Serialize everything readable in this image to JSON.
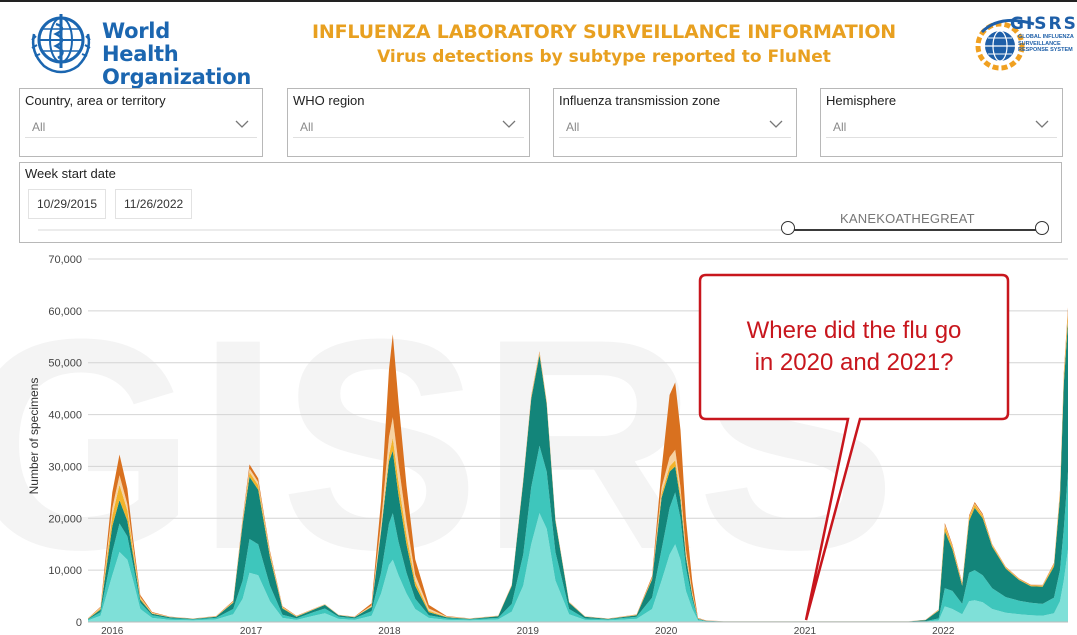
{
  "header": {
    "org_name_line1": "World Health",
    "org_name_line2": "Organization",
    "title": "INFLUENZA LABORATORY SURVEILLANCE INFORMATION",
    "subtitle": "Virus detections by subtype reported to FluNet",
    "partner_logo_text": "GISRS",
    "partner_logo_sub1": "GLOBAL INFLUENZA",
    "partner_logo_sub2": "SURVEILLANCE",
    "partner_logo_sub3": "RESPONSE SYSTEM"
  },
  "filters": [
    {
      "label": "Country, area or territory",
      "value": "All"
    },
    {
      "label": "WHO region",
      "value": "All"
    },
    {
      "label": "Influenza transmission zone",
      "value": "All"
    },
    {
      "label": "Hemisphere",
      "value": "All"
    }
  ],
  "date_filter": {
    "label": "Week start date",
    "start": "10/29/2015",
    "end": "11/26/2022",
    "overlay_text": "KANEKOATHEGREAT"
  },
  "annotation": {
    "line1": "Where did the flu go",
    "line2": "in 2020 and 2021?"
  },
  "colors": {
    "title_orange": "#e8a020",
    "who_blue": "#1b66b0",
    "series_light_cyan": "#7fe0d8",
    "series_turquoise": "#3ec6bc",
    "series_dark_teal": "#13857a",
    "series_yellow": "#f2b32a",
    "series_peach": "#f6d2a2",
    "series_orange": "#d9711f",
    "callout_red": "#c8161d"
  },
  "chart_data": {
    "type": "area",
    "stacked": true,
    "ylabel": "Number of specimens",
    "ylim": [
      0,
      70000
    ],
    "yticks": [
      "0",
      "10,000",
      "20,000",
      "30,000",
      "40,000",
      "50,000",
      "60,000",
      "70,000"
    ],
    "year_labels": [
      "2016",
      "2017",
      "2018",
      "2019",
      "2020",
      "2021",
      "2022"
    ],
    "grid": true,
    "x": [
      "2015-10-29",
      "2015-12-01",
      "2016-01-01",
      "2016-01-20",
      "2016-02-10",
      "2016-02-25",
      "2016-03-15",
      "2016-04-15",
      "2016-06-01",
      "2016-08-01",
      "2016-10-01",
      "2016-11-15",
      "2016-12-10",
      "2016-12-28",
      "2017-01-20",
      "2017-02-20",
      "2017-03-25",
      "2017-05-01",
      "2017-06-15",
      "2017-07-15",
      "2017-08-20",
      "2017-10-01",
      "2017-11-15",
      "2017-12-10",
      "2017-12-31",
      "2018-01-10",
      "2018-01-25",
      "2018-02-15",
      "2018-03-10",
      "2018-04-15",
      "2018-06-01",
      "2018-08-01",
      "2018-10-15",
      "2018-11-20",
      "2018-12-20",
      "2019-01-10",
      "2019-02-01",
      "2019-02-20",
      "2019-03-15",
      "2019-04-20",
      "2019-06-01",
      "2019-08-01",
      "2019-10-15",
      "2019-11-25",
      "2019-12-20",
      "2020-01-10",
      "2020-01-25",
      "2020-02-08",
      "2020-02-22",
      "2020-03-10",
      "2020-03-25",
      "2020-04-15",
      "2020-06-01",
      "2020-10-01",
      "2021-01-01",
      "2021-04-01",
      "2021-07-01",
      "2021-10-01",
      "2021-11-15",
      "2021-12-20",
      "2022-01-05",
      "2022-01-25",
      "2022-02-20",
      "2022-03-10",
      "2022-03-25",
      "2022-04-15",
      "2022-05-10",
      "2022-06-15",
      "2022-07-20",
      "2022-08-20",
      "2022-09-20",
      "2022-10-20",
      "2022-11-05",
      "2022-11-15",
      "2022-11-26"
    ],
    "series": [
      {
        "values": [
          300,
          1200,
          9000,
          13500,
          12000,
          8000,
          2500,
          800,
          400,
          300,
          500,
          1500,
          4500,
          9500,
          9000,
          4000,
          800,
          400,
          1200,
          1700,
          600,
          400,
          1200,
          5500,
          11000,
          12000,
          9000,
          5500,
          2500,
          800,
          400,
          300,
          500,
          2000,
          7000,
          15000,
          21000,
          18000,
          8000,
          1500,
          400,
          300,
          600,
          2500,
          8000,
          13000,
          15000,
          12000,
          6000,
          2500,
          300,
          100,
          50,
          50,
          50,
          50,
          50,
          50,
          80,
          300,
          3000,
          2500,
          1500,
          4000,
          4200,
          3800,
          2500,
          1800,
          1500,
          1300,
          1200,
          1700,
          4000,
          8000,
          14000
        ]
      },
      {
        "values": [
          200,
          700,
          4500,
          5500,
          4500,
          3000,
          1200,
          500,
          300,
          200,
          300,
          1000,
          3500,
          6500,
          6000,
          3000,
          600,
          300,
          700,
          900,
          400,
          300,
          900,
          4000,
          8000,
          9000,
          6500,
          4000,
          2000,
          500,
          300,
          200,
          300,
          1500,
          6000,
          11000,
          13000,
          11000,
          5500,
          1000,
          300,
          200,
          400,
          2200,
          6000,
          9000,
          10000,
          8000,
          4500,
          1800,
          200,
          80,
          40,
          40,
          40,
          40,
          40,
          40,
          80,
          400,
          3500,
          3500,
          2000,
          5500,
          5800,
          5200,
          4000,
          3000,
          2600,
          2400,
          2300,
          3000,
          6000,
          10000,
          15000
        ]
      },
      {
        "values": [
          100,
          500,
          5000,
          4500,
          3000,
          1800,
          600,
          300,
          200,
          100,
          200,
          1200,
          11000,
          12000,
          10500,
          5500,
          1200,
          300,
          500,
          700,
          300,
          200,
          800,
          8000,
          12000,
          12000,
          9000,
          5500,
          2500,
          600,
          200,
          100,
          300,
          3500,
          14000,
          17000,
          17500,
          13000,
          6000,
          1200,
          300,
          100,
          300,
          3500,
          10000,
          7000,
          5000,
          3500,
          2000,
          800,
          100,
          50,
          20,
          20,
          20,
          20,
          20,
          20,
          200,
          1500,
          11000,
          8000,
          3500,
          10000,
          12000,
          11000,
          8000,
          5500,
          4000,
          3200,
          3300,
          6000,
          14000,
          28000,
          29000
        ]
      },
      {
        "values": [
          50,
          200,
          2000,
          3000,
          2000,
          1000,
          300,
          100,
          50,
          30,
          60,
          150,
          400,
          900,
          900,
          500,
          200,
          80,
          50,
          60,
          40,
          50,
          100,
          400,
          1200,
          2500,
          2500,
          1800,
          900,
          300,
          80,
          40,
          60,
          100,
          200,
          300,
          350,
          300,
          200,
          100,
          50,
          30,
          60,
          200,
          800,
          1000,
          1200,
          1000,
          600,
          300,
          50,
          20,
          10,
          10,
          10,
          10,
          10,
          10,
          30,
          100,
          1000,
          500,
          300,
          600,
          700,
          500,
          300,
          200,
          150,
          150,
          200,
          400,
          800,
          1200,
          1500
        ]
      },
      {
        "values": [
          30,
          200,
          1500,
          1800,
          1200,
          700,
          200,
          80,
          40,
          20,
          40,
          100,
          300,
          700,
          600,
          300,
          100,
          50,
          50,
          50,
          30,
          40,
          200,
          1500,
          3500,
          4000,
          3500,
          2500,
          1200,
          400,
          80,
          30,
          40,
          60,
          100,
          150,
          150,
          120,
          100,
          50,
          30,
          20,
          40,
          150,
          1200,
          1800,
          2000,
          1500,
          900,
          400,
          50,
          20,
          10,
          10,
          10,
          10,
          10,
          10,
          20,
          50,
          200,
          150,
          100,
          150,
          150,
          120,
          80,
          60,
          50,
          50,
          60,
          100,
          200,
          300,
          400
        ]
      },
      {
        "values": [
          30,
          150,
          3000,
          4000,
          3000,
          1500,
          400,
          150,
          60,
          30,
          60,
          150,
          400,
          800,
          700,
          400,
          150,
          60,
          50,
          50,
          30,
          50,
          400,
          4000,
          13000,
          16000,
          12000,
          7000,
          3000,
          700,
          100,
          30,
          40,
          80,
          150,
          200,
          200,
          150,
          100,
          50,
          30,
          20,
          60,
          300,
          3500,
          12000,
          13000,
          11000,
          6000,
          2000,
          100,
          30,
          10,
          10,
          10,
          10,
          10,
          10,
          20,
          80,
          400,
          300,
          200,
          300,
          300,
          250,
          150,
          100,
          80,
          80,
          100,
          200,
          400,
          600,
          800
        ]
      }
    ]
  }
}
